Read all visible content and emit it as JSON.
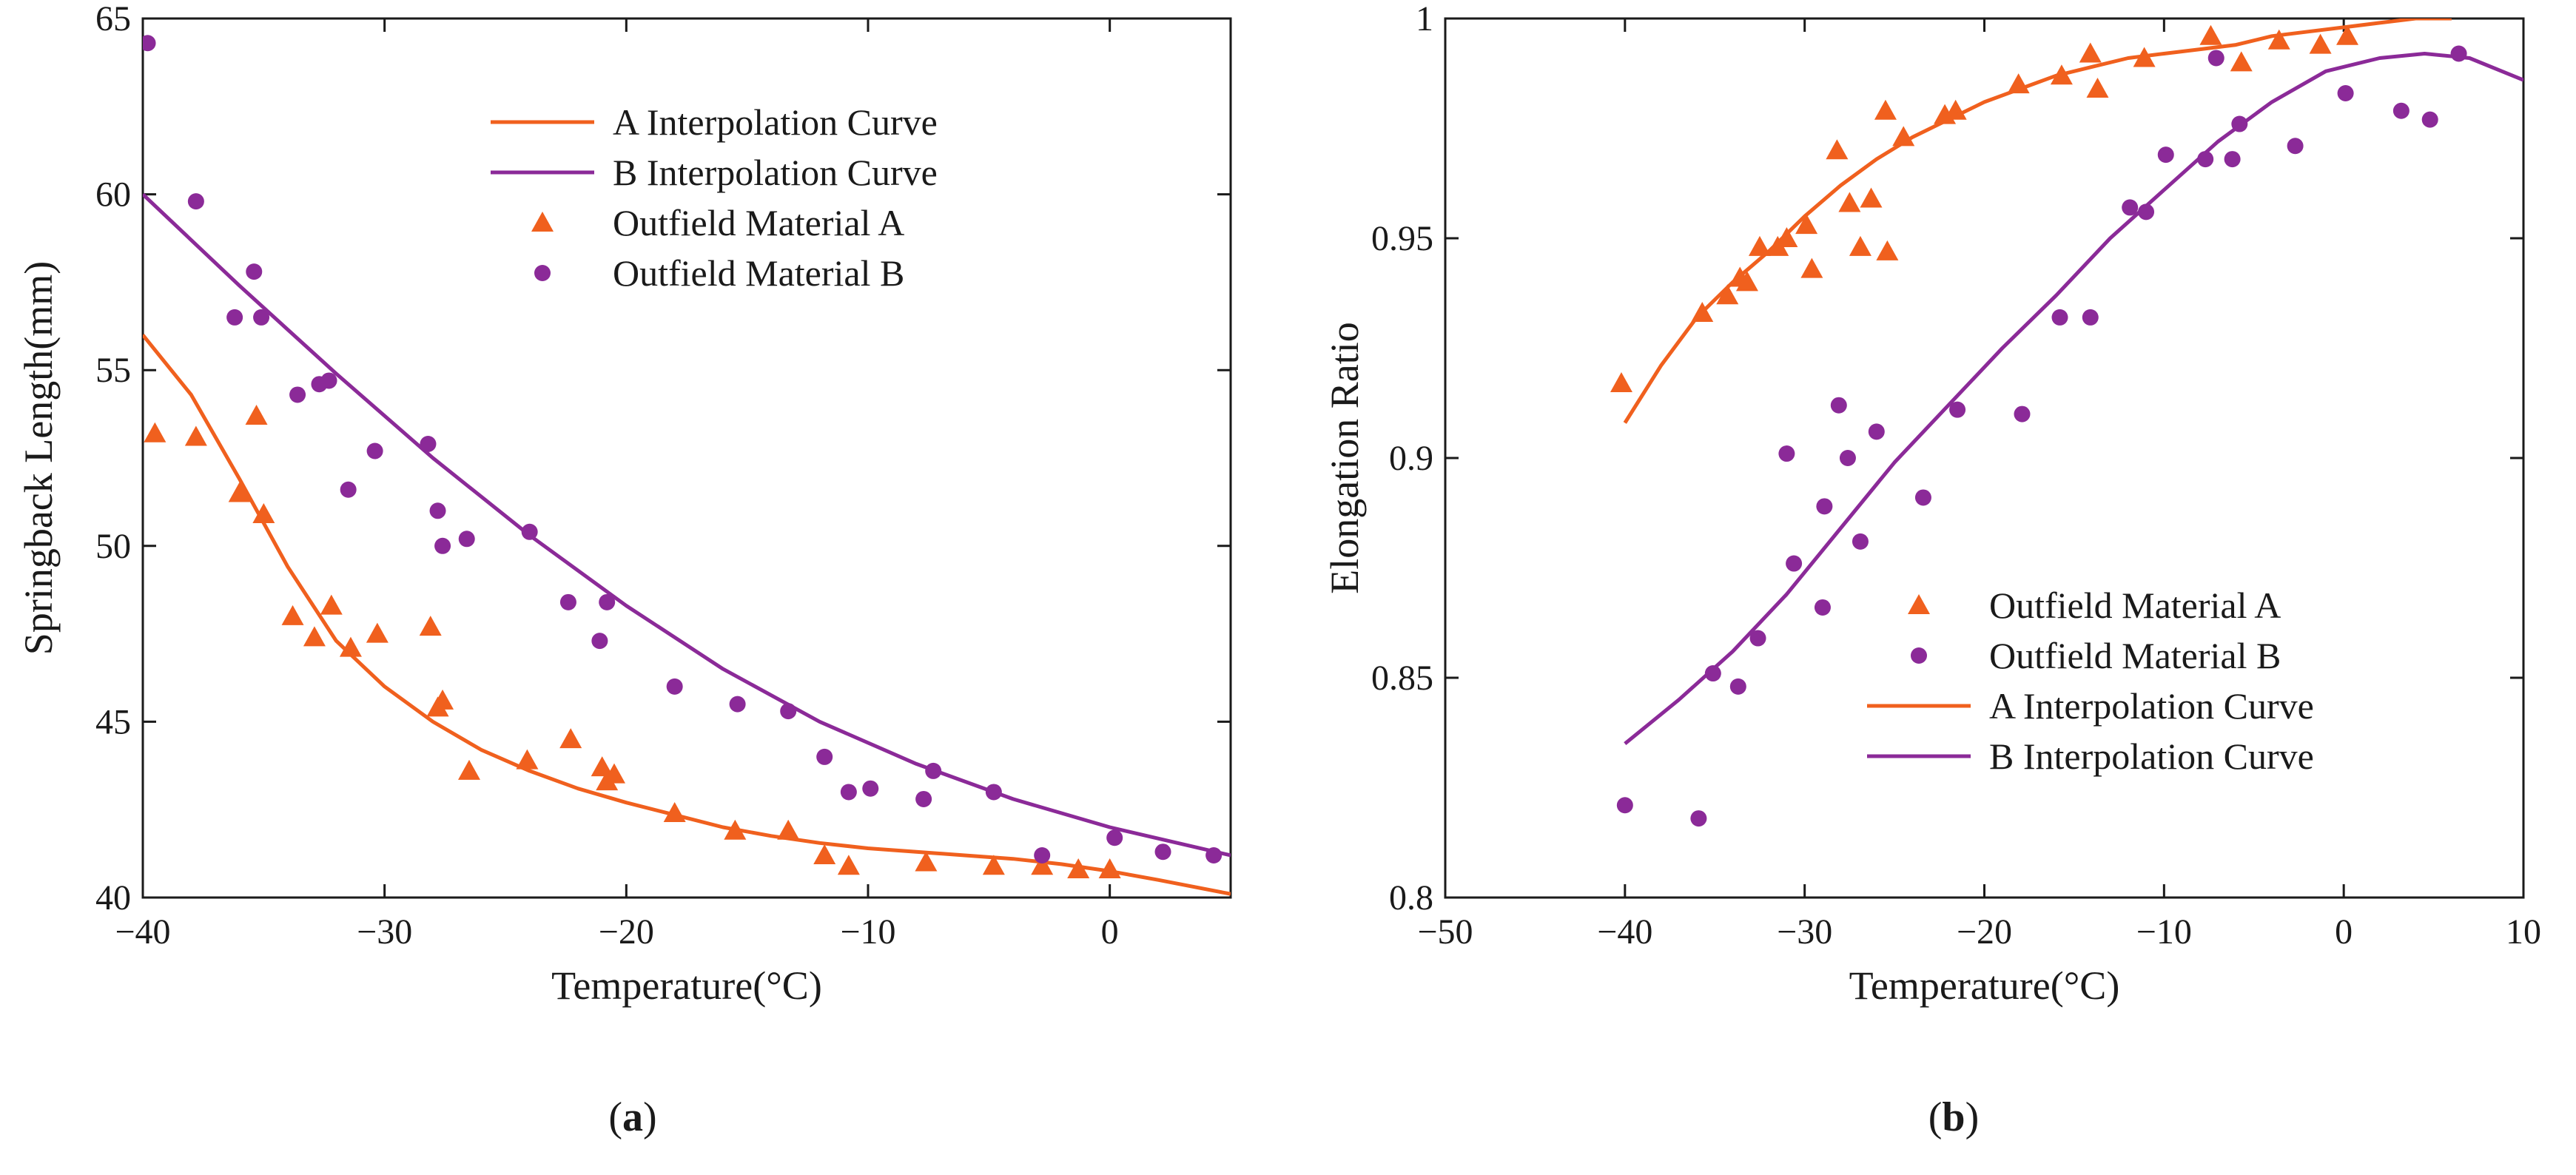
{
  "chart_data": [
    {
      "type": "scatter",
      "panel": "a",
      "caption_label": "a",
      "xlabel": "Temperature(°C)",
      "ylabel": "Springback Length(mm)",
      "xlim": [
        -40,
        5
      ],
      "ylim": [
        40,
        65
      ],
      "xticks": [
        -40,
        -30,
        -20,
        -10,
        0
      ],
      "xtick_labels": [
        "−40",
        "−30",
        "−20",
        "−10",
        "0"
      ],
      "yticks": [
        40,
        45,
        50,
        55,
        60,
        65
      ],
      "ytick_labels": [
        "40",
        "45",
        "50",
        "55",
        "60",
        "65"
      ],
      "legend_position": "top-right",
      "series": [
        {
          "name": "A Interpolation Curve",
          "kind": "line",
          "color": "#f0601e",
          "points": [
            [
              -40,
              56.0
            ],
            [
              -38,
              54.3
            ],
            [
              -36,
              51.9
            ],
            [
              -34,
              49.4
            ],
            [
              -32,
              47.3
            ],
            [
              -30,
              46.0
            ],
            [
              -28,
              45.0
            ],
            [
              -26,
              44.2
            ],
            [
              -24,
              43.6
            ],
            [
              -22,
              43.1
            ],
            [
              -20,
              42.7
            ],
            [
              -18,
              42.35
            ],
            [
              -16,
              42.0
            ],
            [
              -14,
              41.75
            ],
            [
              -12,
              41.55
            ],
            [
              -10,
              41.4
            ],
            [
              -8,
              41.3
            ],
            [
              -6,
              41.2
            ],
            [
              -4,
              41.1
            ],
            [
              -2,
              40.95
            ],
            [
              0,
              40.75
            ],
            [
              2,
              40.5
            ],
            [
              5,
              40.1
            ]
          ]
        },
        {
          "name": "B Interpolation Curve",
          "kind": "line",
          "color": "#8b2a98",
          "points": [
            [
              -40,
              60.0
            ],
            [
              -36,
              57.4
            ],
            [
              -32,
              54.9
            ],
            [
              -28,
              52.5
            ],
            [
              -24,
              50.3
            ],
            [
              -20,
              48.3
            ],
            [
              -16,
              46.5
            ],
            [
              -12,
              45.0
            ],
            [
              -8,
              43.8
            ],
            [
              -4,
              42.8
            ],
            [
              0,
              42.0
            ],
            [
              5,
              41.2
            ]
          ]
        },
        {
          "name": "Outfield Material A",
          "kind": "triangle",
          "color": "#f0601e",
          "points": [
            [
              -39.5,
              53.2
            ],
            [
              -37.8,
              53.1
            ],
            [
              -36,
              51.5
            ],
            [
              -35.3,
              53.7
            ],
            [
              -35,
              50.9
            ],
            [
              -33.8,
              48.0
            ],
            [
              -32.9,
              47.4
            ],
            [
              -32.2,
              48.3
            ],
            [
              -31.4,
              47.1
            ],
            [
              -30.3,
              47.5
            ],
            [
              -28.1,
              47.7
            ],
            [
              -27.8,
              45.4
            ],
            [
              -27.6,
              45.6
            ],
            [
              -26.5,
              43.6
            ],
            [
              -24.1,
              43.9
            ],
            [
              -22.3,
              44.5
            ],
            [
              -21,
              43.7
            ],
            [
              -20.8,
              43.3
            ],
            [
              -20.5,
              43.5
            ],
            [
              -18,
              42.4
            ],
            [
              -15.5,
              41.9
            ],
            [
              -13.3,
              41.9
            ],
            [
              -11.8,
              41.2
            ],
            [
              -10.8,
              40.9
            ],
            [
              -7.6,
              41.0
            ],
            [
              -4.8,
              40.9
            ],
            [
              -2.8,
              40.9
            ],
            [
              -1.3,
              40.8
            ],
            [
              0,
              40.8
            ]
          ]
        },
        {
          "name": "Outfield Material B",
          "kind": "circle",
          "color": "#8b2a98",
          "points": [
            [
              -39.8,
              64.3
            ],
            [
              -37.8,
              59.8
            ],
            [
              -36.2,
              56.5
            ],
            [
              -35.4,
              57.8
            ],
            [
              -35.1,
              56.5
            ],
            [
              -33.6,
              54.3
            ],
            [
              -32.7,
              54.6
            ],
            [
              -32.3,
              54.7
            ],
            [
              -31.5,
              51.6
            ],
            [
              -30.4,
              52.7
            ],
            [
              -28.2,
              52.9
            ],
            [
              -27.8,
              51.0
            ],
            [
              -27.6,
              50.0
            ],
            [
              -26.6,
              50.2
            ],
            [
              -24,
              50.4
            ],
            [
              -22.4,
              48.4
            ],
            [
              -21.1,
              47.3
            ],
            [
              -20.8,
              48.4
            ],
            [
              -18,
              46.0
            ],
            [
              -15.4,
              45.5
            ],
            [
              -13.3,
              45.3
            ],
            [
              -11.8,
              44.0
            ],
            [
              -10.8,
              43.0
            ],
            [
              -9.9,
              43.1
            ],
            [
              -7.7,
              42.8
            ],
            [
              -7.3,
              43.6
            ],
            [
              -4.8,
              43.0
            ],
            [
              -2.8,
              41.2
            ],
            [
              0.2,
              41.7
            ],
            [
              2.2,
              41.3
            ],
            [
              4.3,
              41.2
            ]
          ]
        }
      ]
    },
    {
      "type": "scatter",
      "panel": "b",
      "caption_label": "b",
      "xlabel": "Temperature(°C)",
      "ylabel": "Elongation Ratio",
      "xlim": [
        -50,
        10
      ],
      "ylim": [
        0.8,
        1.0
      ],
      "xticks": [
        -50,
        -40,
        -30,
        -20,
        -10,
        0,
        10
      ],
      "xtick_labels": [
        "−50",
        "−40",
        "−30",
        "−20",
        "−10",
        "0",
        "10"
      ],
      "yticks": [
        0.8,
        0.85,
        0.9,
        0.95,
        1.0
      ],
      "ytick_labels": [
        "0.8",
        "0.85",
        "0.9",
        "0.95",
        "1"
      ],
      "legend_position": "bottom-right",
      "series": [
        {
          "name": "Outfield Material A",
          "kind": "triangle",
          "color": "#f0601e",
          "points": [
            [
              -40.2,
              0.917
            ],
            [
              -35.7,
              0.933
            ],
            [
              -34.3,
              0.937
            ],
            [
              -33.6,
              0.941
            ],
            [
              -33.2,
              0.94
            ],
            [
              -32.5,
              0.948
            ],
            [
              -31.5,
              0.948
            ],
            [
              -31,
              0.95
            ],
            [
              -29.9,
              0.953
            ],
            [
              -29.6,
              0.943
            ],
            [
              -28.2,
              0.97
            ],
            [
              -27.5,
              0.958
            ],
            [
              -26.9,
              0.948
            ],
            [
              -26.3,
              0.959
            ],
            [
              -25.5,
              0.979
            ],
            [
              -25.4,
              0.947
            ],
            [
              -24.5,
              0.973
            ],
            [
              -22.2,
              0.978
            ],
            [
              -21.6,
              0.979
            ],
            [
              -18.1,
              0.985
            ],
            [
              -15.7,
              0.987
            ],
            [
              -14.1,
              0.992
            ],
            [
              -13.7,
              0.984
            ],
            [
              -11.1,
              0.991
            ],
            [
              -7.4,
              0.996
            ],
            [
              -5.7,
              0.99
            ],
            [
              -3.6,
              0.995
            ],
            [
              -1.3,
              0.994
            ],
            [
              0.2,
              0.996
            ]
          ]
        },
        {
          "name": "Outfield Material B",
          "kind": "circle",
          "color": "#8b2a98",
          "points": [
            [
              -40,
              0.821
            ],
            [
              -35.9,
              0.818
            ],
            [
              -35.1,
              0.851
            ],
            [
              -33.7,
              0.848
            ],
            [
              -32.6,
              0.859
            ],
            [
              -31,
              0.901
            ],
            [
              -30.6,
              0.876
            ],
            [
              -29,
              0.866
            ],
            [
              -28.9,
              0.889
            ],
            [
              -28.1,
              0.912
            ],
            [
              -27.6,
              0.9
            ],
            [
              -26.9,
              0.881
            ],
            [
              -26,
              0.906
            ],
            [
              -23.4,
              0.891
            ],
            [
              -21.5,
              0.911
            ],
            [
              -17.9,
              0.91
            ],
            [
              -15.8,
              0.932
            ],
            [
              -14.1,
              0.932
            ],
            [
              -11.9,
              0.957
            ],
            [
              -11,
              0.956
            ],
            [
              -9.9,
              0.969
            ],
            [
              -7.7,
              0.968
            ],
            [
              -7.1,
              0.991
            ],
            [
              -6.2,
              0.968
            ],
            [
              -5.8,
              0.976
            ],
            [
              -2.7,
              0.971
            ],
            [
              0.1,
              0.983
            ],
            [
              3.2,
              0.979
            ],
            [
              4.8,
              0.977
            ],
            [
              6.4,
              0.992
            ]
          ]
        },
        {
          "name": "A Interpolation Curve",
          "kind": "line",
          "color": "#f0601e",
          "points": [
            [
              -40,
              0.908
            ],
            [
              -38,
              0.921
            ],
            [
              -36,
              0.932
            ],
            [
              -34,
              0.94
            ],
            [
              -32,
              0.947
            ],
            [
              -30,
              0.955
            ],
            [
              -28,
              0.962
            ],
            [
              -26,
              0.968
            ],
            [
              -24,
              0.973
            ],
            [
              -22,
              0.977
            ],
            [
              -20,
              0.981
            ],
            [
              -18,
              0.984
            ],
            [
              -16,
              0.987
            ],
            [
              -14,
              0.989
            ],
            [
              -12,
              0.991
            ],
            [
              -10,
              0.992
            ],
            [
              -8,
              0.993
            ],
            [
              -6,
              0.994
            ],
            [
              -4,
              0.996
            ],
            [
              -2,
              0.997
            ],
            [
              0,
              0.998
            ],
            [
              2,
              0.999
            ],
            [
              4,
              1.0
            ],
            [
              6,
              1.0
            ]
          ]
        },
        {
          "name": "B Interpolation Curve",
          "kind": "line",
          "color": "#8b2a98",
          "points": [
            [
              -40,
              0.835
            ],
            [
              -37,
              0.845
            ],
            [
              -34,
              0.856
            ],
            [
              -31,
              0.869
            ],
            [
              -28,
              0.884
            ],
            [
              -25,
              0.899
            ],
            [
              -22,
              0.912
            ],
            [
              -19,
              0.925
            ],
            [
              -16,
              0.937
            ],
            [
              -13,
              0.95
            ],
            [
              -10,
              0.961
            ],
            [
              -7,
              0.972
            ],
            [
              -4,
              0.981
            ],
            [
              -1,
              0.988
            ],
            [
              2,
              0.991
            ],
            [
              4.5,
              0.992
            ],
            [
              7,
              0.991
            ],
            [
              10,
              0.986
            ]
          ]
        }
      ]
    }
  ]
}
